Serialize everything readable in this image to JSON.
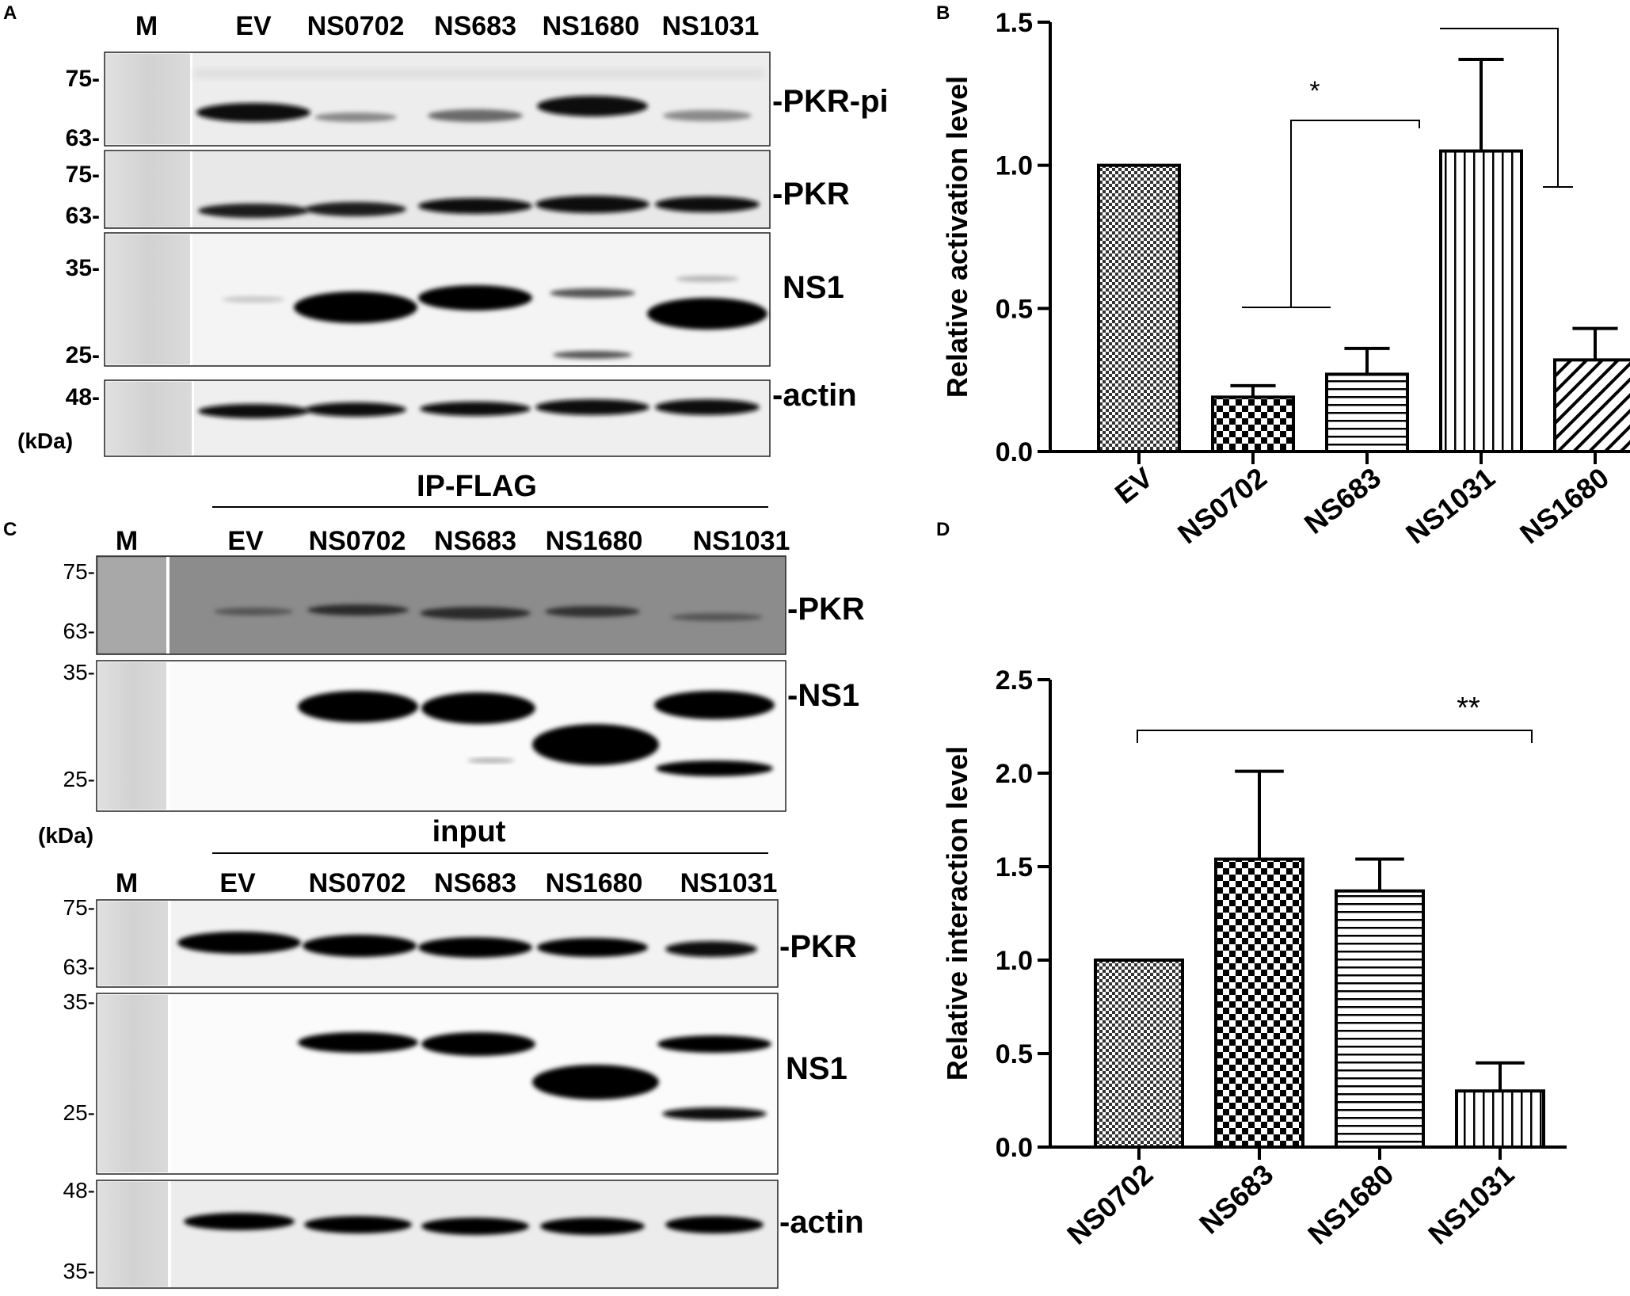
{
  "panelA": {
    "letter": "A",
    "marker": "M",
    "lanes": [
      "EV",
      "NS0702",
      "NS683",
      "NS1680",
      "NS1031"
    ],
    "rows": [
      {
        "label": "-PKR-pi",
        "mw_top": "75-",
        "mw_bot": "63-"
      },
      {
        "label": "-PKR",
        "mw_top": "75-",
        "mw_bot": "63-"
      },
      {
        "label": "NS1",
        "mw_top": "35-",
        "mw_bot": "25-"
      },
      {
        "label": "-actin",
        "mw_top": "48-",
        "mw_bot": ""
      }
    ],
    "kda": "(kDa)"
  },
  "panelC": {
    "letter": "C",
    "ip_title": "IP-FLAG",
    "input_title": "input",
    "marker": "M",
    "lanes": [
      "EV",
      "NS0702",
      "NS683",
      "NS1680",
      "NS1031"
    ],
    "ip_rows": [
      {
        "label": "-PKR",
        "mw_top": "75-",
        "mw_bot": "63-"
      },
      {
        "label": "-NS1",
        "mw_top": "35-",
        "mw_bot": "25-"
      }
    ],
    "input_rows": [
      {
        "label": "-PKR",
        "mw_top": "75-",
        "mw_bot": "63-"
      },
      {
        "label": "NS1",
        "mw_top": "35-",
        "mw_bot": "25-"
      },
      {
        "label": "-actin",
        "mw_top": "48-",
        "mw_bot": "35-"
      }
    ],
    "kda": "(kDa)"
  },
  "chart_data": [
    {
      "panel": "B",
      "type": "bar",
      "ylabel": "Relative activation level",
      "categories": [
        "EV",
        "NS0702",
        "NS683",
        "NS1031",
        "NS1680"
      ],
      "values": [
        1.0,
        0.19,
        0.27,
        1.05,
        0.32
      ],
      "errors": [
        0,
        0.04,
        0.09,
        0.32,
        0.11
      ],
      "patterns": [
        "fine-check",
        "check",
        "horizontal",
        "vertical",
        "diagonal"
      ],
      "ylim": [
        0,
        1.5
      ],
      "yticks": [
        "0.0",
        "0.5",
        "1.0",
        "1.5"
      ],
      "significance": "*"
    },
    {
      "panel": "D",
      "type": "bar",
      "ylabel": "Relative interaction level",
      "categories": [
        "NS0702",
        "NS683",
        "NS1680",
        "NS1031"
      ],
      "values": [
        1.0,
        1.54,
        1.37,
        0.3
      ],
      "errors": [
        0,
        0.47,
        0.17,
        0.15
      ],
      "patterns": [
        "fine-check",
        "check",
        "horizontal",
        "vertical"
      ],
      "ylim": [
        0,
        2.5
      ],
      "yticks": [
        "0.0",
        "0.5",
        "1.0",
        "1.5",
        "2.0",
        "2.5"
      ],
      "significance": "**"
    }
  ]
}
